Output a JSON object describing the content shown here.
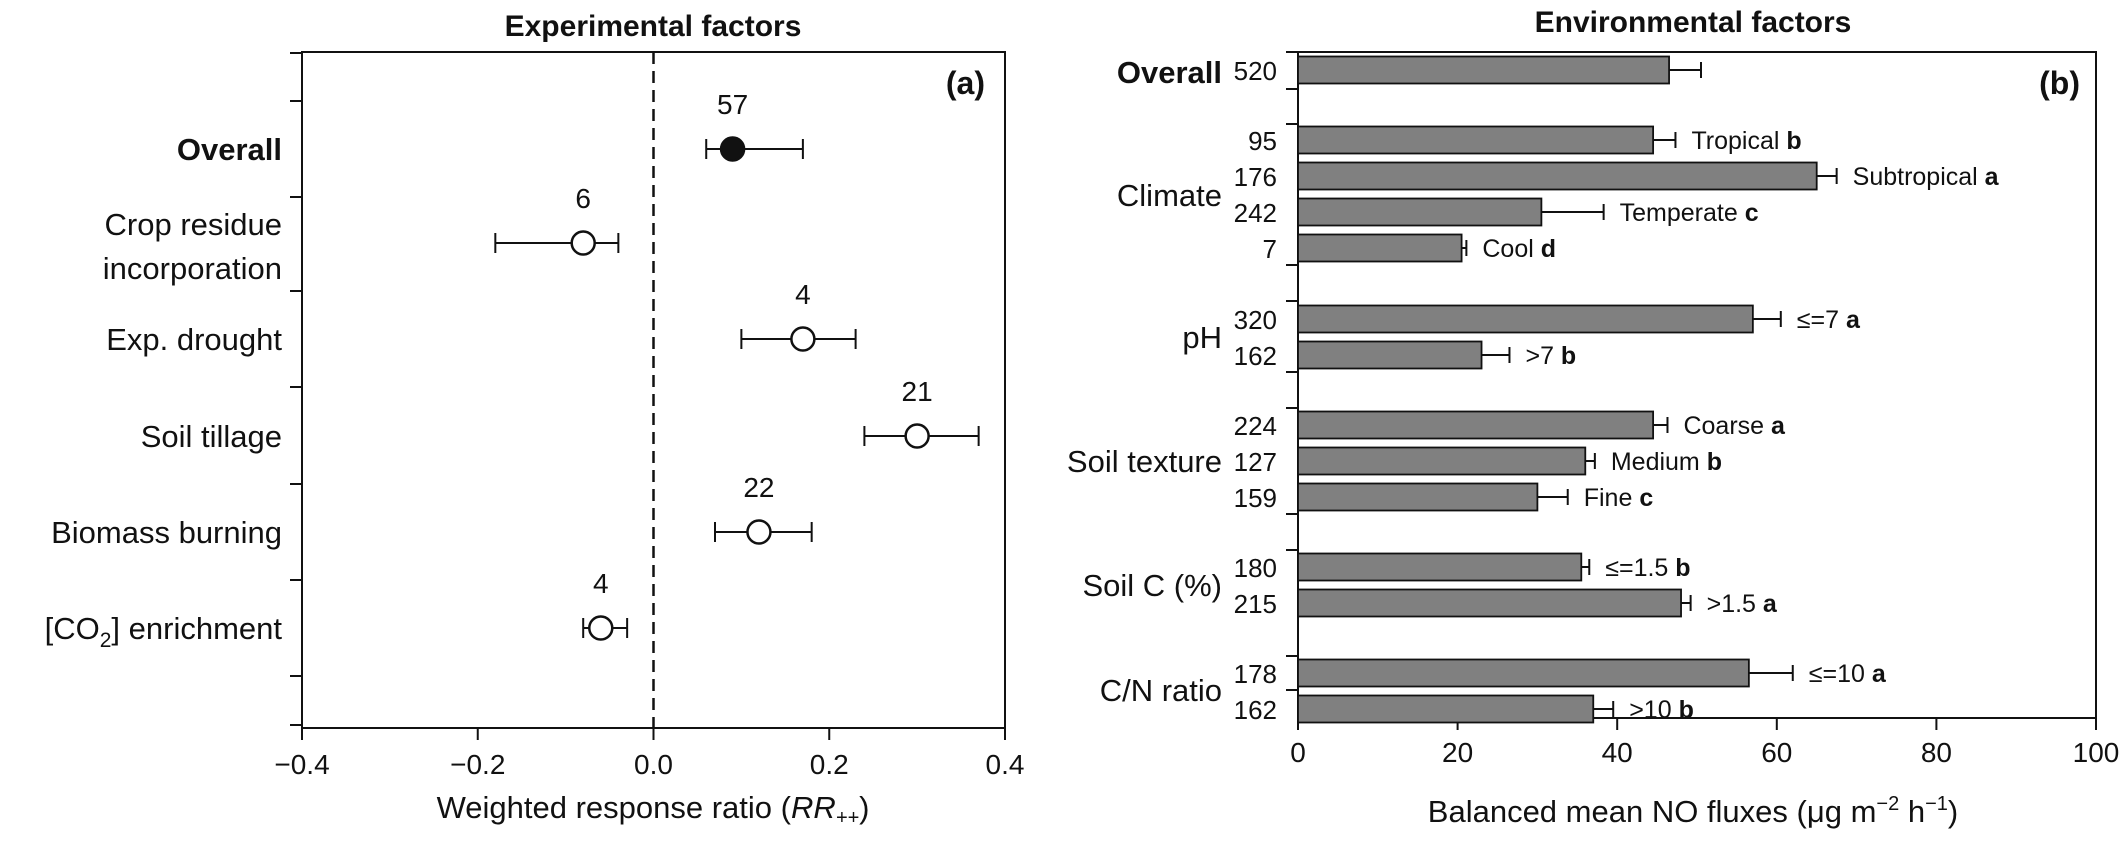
{
  "chart_data": [
    {
      "type": "scatter",
      "panel_label": "(a)",
      "title": "Experimental factors",
      "xlabel_main": "Weighted response ratio (",
      "xlabel_var": "RR",
      "xlabel_sub": "++",
      "xlabel_end": ")",
      "xlim": [
        -0.4,
        0.4
      ],
      "x_ticks": [
        -0.4,
        -0.2,
        0.0,
        0.2,
        0.4
      ],
      "x_tick_labels": [
        "−0.4",
        "−0.2",
        "0.0",
        "0.2",
        "0.4"
      ],
      "reference_line": 0.0,
      "points": [
        {
          "lines": [
            "Overall"
          ],
          "bold": true,
          "mean": 0.09,
          "ci": [
            0.06,
            0.17
          ],
          "n": "57",
          "filled": true
        },
        {
          "lines": [
            "Crop residue",
            "incorporation"
          ],
          "bold": false,
          "mean": -0.08,
          "ci": [
            -0.18,
            -0.04
          ],
          "n": "6",
          "filled": false
        },
        {
          "lines": [
            "Exp. drought"
          ],
          "bold": false,
          "mean": 0.17,
          "ci": [
            0.1,
            0.23
          ],
          "n": "4",
          "filled": false
        },
        {
          "lines": [
            "Soil tillage"
          ],
          "bold": false,
          "mean": 0.3,
          "ci": [
            0.24,
            0.37
          ],
          "n": "21",
          "filled": false
        },
        {
          "lines": [
            "Biomass burning"
          ],
          "bold": false,
          "mean": 0.12,
          "ci": [
            0.07,
            0.18
          ],
          "n": "22",
          "filled": false
        },
        {
          "lines": [
            "[CO2] enrichment"
          ],
          "bold": false,
          "label_pre": "[CO",
          "label_sub": "2",
          "label_post": "] enrichment",
          "mean": -0.06,
          "ci": [
            -0.08,
            -0.03
          ],
          "n": "4",
          "filled": false
        }
      ]
    },
    {
      "type": "bar",
      "orientation": "horizontal",
      "panel_label": "(b)",
      "title": "Environmental factors",
      "xlabel": "Balanced mean NO fluxes (μg m−2 h−1)",
      "xlabel_parts": [
        "Balanced mean NO fluxes (μg m",
        "−2",
        " h",
        "−1",
        ")"
      ],
      "xlim": [
        0,
        100
      ],
      "x_ticks": [
        0,
        20,
        40,
        60,
        80,
        100
      ],
      "groups": [
        {
          "name": "Overall",
          "bold": true,
          "bars": [
            {
              "label": "",
              "letter": "",
              "n": "520",
              "value": 46.5,
              "err": 4.0
            }
          ]
        },
        {
          "name": "Climate",
          "bold": false,
          "bars": [
            {
              "label": "Tropical",
              "letter": "b",
              "n": "95",
              "value": 44.5,
              "err": 2.8
            },
            {
              "label": "Subtropical",
              "letter": "a",
              "n": "176",
              "value": 65.0,
              "err": 2.5
            },
            {
              "label": "Temperate",
              "letter": "c",
              "n": "242",
              "value": 30.5,
              "err": 7.8
            },
            {
              "label": "Cool",
              "letter": "d",
              "n": "7",
              "value": 20.5,
              "err": 0.6
            }
          ]
        },
        {
          "name": "pH",
          "bold": false,
          "bars": [
            {
              "label": "≤=7",
              "letter": "a",
              "n": "320",
              "value": 57.0,
              "err": 3.5
            },
            {
              "label": ">7",
              "letter": "b",
              "n": "162",
              "value": 23.0,
              "err": 3.5
            }
          ]
        },
        {
          "name": "Soil texture",
          "bold": false,
          "bars": [
            {
              "label": "Coarse",
              "letter": "a",
              "n": "224",
              "value": 44.5,
              "err": 1.8
            },
            {
              "label": "Medium",
              "letter": "b",
              "n": "127",
              "value": 36.0,
              "err": 1.2
            },
            {
              "label": "Fine",
              "letter": "c",
              "n": "159",
              "value": 30.0,
              "err": 3.8
            }
          ]
        },
        {
          "name": "Soil C (%)",
          "bold": false,
          "bars": [
            {
              "label": "≤=1.5",
              "letter": "b",
              "n": "180",
              "value": 35.5,
              "err": 1.0
            },
            {
              "label": ">1.5",
              "letter": "a",
              "n": "215",
              "value": 48.0,
              "err": 1.2
            }
          ]
        },
        {
          "name": "C/N ratio",
          "bold": false,
          "bars": [
            {
              "label": "≤=10",
              "letter": "a",
              "n": "178",
              "value": 56.5,
              "err": 5.5
            },
            {
              "label": ">10",
              "letter": "b",
              "n": "162",
              "value": 37.0,
              "err": 2.5
            }
          ]
        }
      ]
    }
  ]
}
